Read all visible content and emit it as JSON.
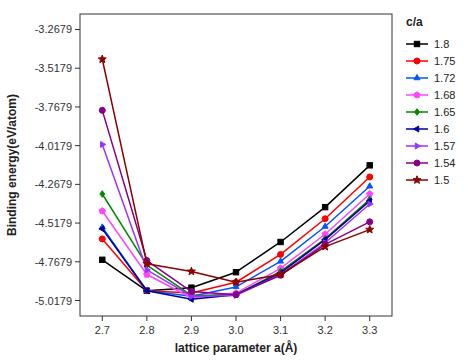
{
  "chart_data": {
    "type": "line",
    "x_label": "lattice parameter a(Å)",
    "y_label": "Binding energy(eV/atom)",
    "legend_title": "c/a",
    "legend": "right",
    "grid": false,
    "xlim": [
      2.65,
      3.35
    ],
    "ylim": [
      -5.1179,
      -3.1679
    ],
    "xticks": [
      2.7,
      2.8,
      2.9,
      {
        "value": 3.0,
        "label": "3.0"
      },
      3.1,
      3.2,
      3.3
    ],
    "yticks": [
      -5.0179,
      -4.7679,
      -4.5179,
      -4.2679,
      -4.0179,
      -3.7679,
      -3.5179,
      -3.2679
    ],
    "x": [
      2.7,
      2.8,
      2.9,
      3.0,
      3.1,
      3.2,
      3.3
    ],
    "series": [
      {
        "name": "1.8",
        "color": "#000000",
        "marker": "square",
        "values": [
          -4.755,
          -4.955,
          -4.935,
          -4.835,
          -4.64,
          -4.415,
          -4.145
        ]
      },
      {
        "name": "1.75",
        "color": "#ff0000",
        "marker": "circle",
        "values": [
          -4.62,
          -4.955,
          -4.97,
          -4.9,
          -4.72,
          -4.49,
          -4.22
        ]
      },
      {
        "name": "1.72",
        "color": "#0055ff",
        "marker": "triangle-up",
        "values": [
          -4.545,
          -4.955,
          -4.99,
          -4.93,
          -4.765,
          -4.54,
          -4.28
        ]
      },
      {
        "name": "1.68",
        "color": "#ff44ff",
        "marker": "pentagon",
        "values": [
          -4.44,
          -4.85,
          -5.0,
          -4.97,
          -4.81,
          -4.59,
          -4.33
        ]
      },
      {
        "name": "1.65",
        "color": "#008800",
        "marker": "diamond",
        "values": [
          -4.33,
          -4.79,
          -4.985,
          -4.98,
          -4.83,
          -4.62,
          -4.365
        ]
      },
      {
        "name": "1.6",
        "color": "#000099",
        "marker": "triangle-left",
        "values": [
          -4.555,
          -4.955,
          -5.01,
          -4.98,
          -4.84,
          -4.625,
          -4.375
        ]
      },
      {
        "name": "1.57",
        "color": "#9933ff",
        "marker": "triangle-right",
        "values": [
          -4.01,
          -4.82,
          -4.99,
          -4.985,
          -4.85,
          -4.645,
          -4.395
        ]
      },
      {
        "name": "1.54",
        "color": "#880088",
        "marker": "circle",
        "values": [
          -3.79,
          -4.76,
          -4.96,
          -4.98,
          -4.855,
          -4.655,
          -4.51
        ]
      },
      {
        "name": "1.5",
        "color": "#8B0000",
        "marker": "star",
        "values": [
          -3.46,
          -4.78,
          -4.83,
          -4.9,
          -4.85,
          -4.67,
          -4.56
        ]
      }
    ]
  }
}
